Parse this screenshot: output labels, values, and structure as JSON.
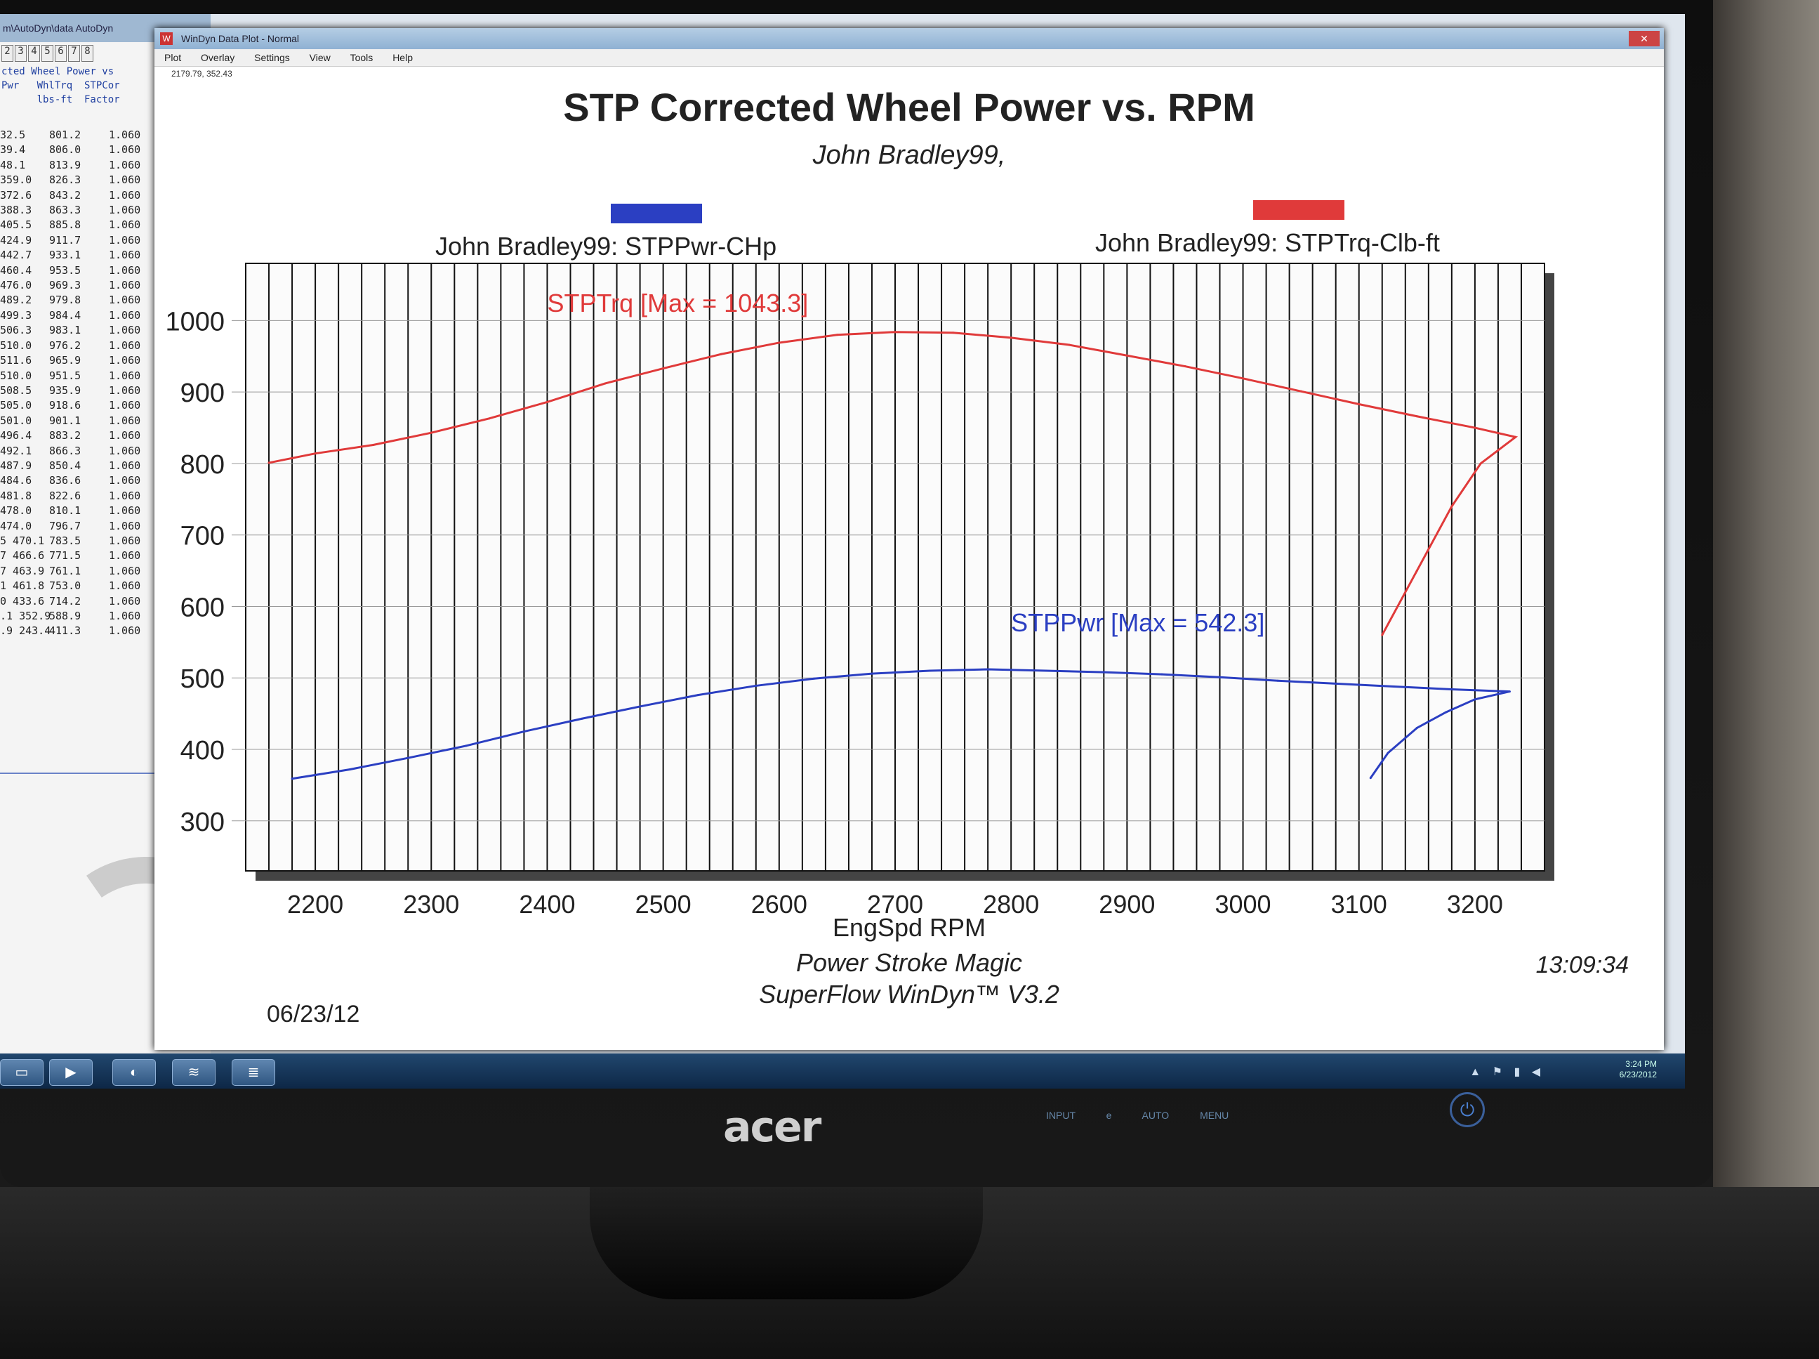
{
  "left_window": {
    "title": "m\\AutoDyn\\data AutoDyn",
    "tabs": [
      "2",
      "3",
      "4",
      "5",
      "6",
      "7",
      "8"
    ],
    "header_lines": [
      "cted Wheel Power vs",
      "Pwr   WhlTrq  STPCor",
      "      lbs-ft  Factor"
    ],
    "rows": [
      [
        "32.5",
        "801.2",
        "1.060"
      ],
      [
        "39.4",
        "806.0",
        "1.060"
      ],
      [
        "48.1",
        "813.9",
        "1.060"
      ],
      [
        "359.0",
        "826.3",
        "1.060"
      ],
      [
        "372.6",
        "843.2",
        "1.060"
      ],
      [
        "388.3",
        "863.3",
        "1.060"
      ],
      [
        "405.5",
        "885.8",
        "1.060"
      ],
      [
        "424.9",
        "911.7",
        "1.060"
      ],
      [
        "442.7",
        "933.1",
        "1.060"
      ],
      [
        "460.4",
        "953.5",
        "1.060"
      ],
      [
        "476.0",
        "969.3",
        "1.060"
      ],
      [
        "489.2",
        "979.8",
        "1.060"
      ],
      [
        "499.3",
        "984.4",
        "1.060"
      ],
      [
        "506.3",
        "983.1",
        "1.060"
      ],
      [
        "510.0",
        "976.2",
        "1.060"
      ],
      [
        "511.6",
        "965.9",
        "1.060"
      ],
      [
        "510.0",
        "951.5",
        "1.060"
      ],
      [
        "508.5",
        "935.9",
        "1.060"
      ],
      [
        "505.0",
        "918.6",
        "1.060"
      ],
      [
        "501.0",
        "901.1",
        "1.060"
      ],
      [
        "496.4",
        "883.2",
        "1.060"
      ],
      [
        "492.1",
        "866.3",
        "1.060"
      ],
      [
        "487.9",
        "850.4",
        "1.060"
      ],
      [
        "484.6",
        "836.6",
        "1.060"
      ],
      [
        "481.8",
        "822.6",
        "1.060"
      ],
      [
        "478.0",
        "810.1",
        "1.060"
      ],
      [
        "474.0",
        "796.7",
        "1.060"
      ],
      [
        "5 470.1",
        "783.5",
        "1.060"
      ],
      [
        "7 466.6",
        "771.5",
        "1.060"
      ],
      [
        "7 463.9",
        "761.1",
        "1.060"
      ],
      [
        "1 461.8",
        "753.0",
        "1.060"
      ],
      [
        "0 433.6",
        "714.2",
        "1.060"
      ],
      [
        ".1 352.9",
        "588.9",
        "1.060"
      ],
      [
        ".9 243.4",
        "411.3",
        "1.060"
      ]
    ]
  },
  "window": {
    "title": "WinDyn Data Plot - Normal",
    "menu": [
      "Plot",
      "Overlay",
      "Settings",
      "View",
      "Tools",
      "Help"
    ],
    "cursor_readout": "2179.79, 352.43"
  },
  "taskbar": {
    "clock_time": "3:24 PM",
    "clock_date": "6/23/2012"
  },
  "monitor": {
    "brand": "acer",
    "buttons": "INPUT e AUTO MENU"
  },
  "footer": {
    "line1": "Power Stroke Magic",
    "line2": "SuperFlow WinDyn™ V3.2",
    "date": "06/23/12",
    "time": "13:09:34"
  },
  "chart_data": {
    "type": "line",
    "title": "STP Corrected Wheel Power vs. RPM",
    "subtitle": "John Bradley99,",
    "xlabel": "EngSpd RPM",
    "ylabel": "",
    "xlim": [
      2140,
      3260
    ],
    "ylim": [
      230,
      1080
    ],
    "x_ticks": [
      2200,
      2300,
      2400,
      2500,
      2600,
      2700,
      2800,
      2900,
      3000,
      3100,
      3200
    ],
    "y_ticks": [
      300,
      400,
      500,
      600,
      700,
      800,
      900,
      1000
    ],
    "grid": true,
    "series": [
      {
        "name": "John Bradley99: STPPwr-CHp",
        "color": "#2b3fc2",
        "annotation": "STPPwr [Max = 542.3]",
        "x": [
          2180,
          2230,
          2280,
          2330,
          2380,
          2430,
          2480,
          2530,
          2580,
          2630,
          2680,
          2730,
          2780,
          2830,
          2880,
          2930,
          2980,
          3030,
          3080,
          3130,
          3180,
          3230,
          3200,
          3175,
          3150,
          3125,
          3110
        ],
        "y": [
          359,
          372,
          388,
          405,
          425,
          443,
          460,
          476,
          489,
          499,
          506,
          510,
          512,
          510,
          508,
          505,
          501,
          496,
          492,
          488,
          484,
          481,
          470,
          452,
          430,
          395,
          360
        ]
      },
      {
        "name": "John Bradley99: STPTrq-Clb-ft",
        "color": "#e03a3a",
        "annotation": "STPTrq [Max = 1043.3]",
        "x": [
          2160,
          2200,
          2250,
          2300,
          2350,
          2400,
          2450,
          2500,
          2550,
          2600,
          2650,
          2700,
          2750,
          2800,
          2850,
          2900,
          2950,
          3000,
          3050,
          3100,
          3150,
          3200,
          3235,
          3205,
          3180,
          3150,
          3120
        ],
        "y": [
          801,
          814,
          826,
          843,
          863,
          886,
          912,
          933,
          953,
          969,
          980,
          984,
          983,
          976,
          966,
          951,
          936,
          919,
          901,
          883,
          866,
          850,
          837,
          800,
          740,
          650,
          560
        ]
      }
    ]
  }
}
